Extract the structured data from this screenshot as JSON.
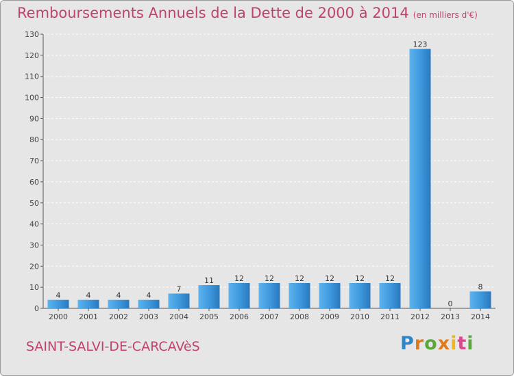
{
  "header": {
    "title": "Remboursements Annuels de la Dette de 2000 à 2014",
    "unit": "(en milliers d'€)"
  },
  "footer": {
    "commune": "SAINT-SALVI-DE-CARCAVèS",
    "logo_text": "Proxiti"
  },
  "colors": {
    "bar": "#3d97dc",
    "title": "#c0436e",
    "background": "#e6e6e6"
  },
  "chart_data": {
    "type": "bar",
    "title": "Remboursements Annuels de la Dette de 2000 à 2014",
    "subtitle": "(en milliers d'€)",
    "xlabel": "",
    "ylabel": "",
    "categories": [
      "2000",
      "2001",
      "2002",
      "2003",
      "2004",
      "2005",
      "2006",
      "2007",
      "2008",
      "2009",
      "2010",
      "2011",
      "2012",
      "2013",
      "2014"
    ],
    "values": [
      4,
      4,
      4,
      4,
      7,
      11,
      12,
      12,
      12,
      12,
      12,
      12,
      123,
      0,
      8
    ],
    "ylim": [
      0,
      130
    ],
    "yticks": [
      0,
      10,
      20,
      30,
      40,
      50,
      60,
      70,
      80,
      90,
      100,
      110,
      120,
      130
    ],
    "grid": true,
    "legend": "none"
  }
}
